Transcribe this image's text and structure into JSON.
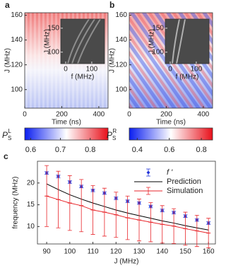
{
  "chart_data": [
    {
      "type": "heatmap",
      "panel_label": "a",
      "xlabel": "Time (ns)",
      "ylabel": "J (MHz)",
      "xlim": [
        0,
        450
      ],
      "xticks": [
        0,
        200,
        400
      ],
      "ylim": [
        85,
        162
      ],
      "yticks": [
        100,
        120,
        140,
        160
      ],
      "inset": {
        "xlabel": "f (MHz)",
        "ylabel": "J (MHz)",
        "xlim": [
          -19,
          149
        ],
        "xticks": [
          0,
          100
        ],
        "ylim": [
          76,
          169
        ],
        "yticks": [
          100,
          150
        ]
      },
      "colorbar": {
        "label": {
          "base": "P",
          "sub": "S",
          "sup": "L"
        },
        "clim": [
          0.58,
          0.86
        ],
        "ticks": [
          0.6,
          0.7,
          0.8
        ]
      }
    },
    {
      "type": "heatmap",
      "panel_label": "b",
      "xlabel": "Time (ns)",
      "ylabel": "J (MHz)",
      "xlim": [
        0,
        450
      ],
      "xticks": [
        0,
        200,
        400
      ],
      "ylim": [
        85,
        162
      ],
      "yticks": [
        100,
        120,
        140,
        160
      ],
      "inset": {
        "xlabel": "f (MHz)",
        "ylabel": "J (MHz)",
        "xlim": [
          -19,
          149
        ],
        "xticks": [
          0,
          100
        ],
        "ylim": [
          76,
          169
        ],
        "yticks": [
          100,
          150
        ]
      },
      "colorbar": {
        "label": {
          "base": "P",
          "sub": "S",
          "sup": "R"
        },
        "clim": [
          0.35,
          0.87
        ],
        "ticks": [
          0.4,
          0.6,
          0.8
        ]
      }
    },
    {
      "type": "line",
      "panel_label": "c",
      "xlabel": "J (MHz)",
      "ylabel": "frequency (MHz)",
      "x": [
        90,
        95,
        100,
        105,
        110,
        115,
        120,
        125,
        130,
        135,
        140,
        145,
        150,
        155,
        160
      ],
      "xlim": [
        86,
        163
      ],
      "xticks": [
        90,
        100,
        110,
        120,
        130,
        140,
        150,
        160
      ],
      "ylim": [
        6,
        25
      ],
      "yticks": [
        10,
        15,
        20
      ],
      "legend": "upper right",
      "series": [
        {
          "name": "f '",
          "color": "#2032d8",
          "marker": "diamond",
          "line": false,
          "values": [
            22.3,
            21.5,
            20.2,
            19.2,
            18.3,
            17.7,
            16.5,
            15.8,
            15.4,
            14.6,
            13.7,
            13.2,
            12.4,
            11.5,
            10.8
          ],
          "errors": [
            0.3,
            0.3,
            0.3,
            0.3,
            0.3,
            0.3,
            0.3,
            0.3,
            0.3,
            0.3,
            0.3,
            0.3,
            0.3,
            0.3,
            0.3
          ]
        },
        {
          "name": "Prediction",
          "color": "#000000",
          "line": true,
          "values": [
            19.8,
            18.5,
            17.3,
            16.3,
            15.4,
            14.6,
            13.8,
            13.1,
            12.5,
            11.9,
            11.3,
            10.8,
            10.2,
            9.7,
            9.2
          ]
        },
        {
          "name": "Simulation",
          "color": "#e8262b",
          "line": true,
          "values": [
            17.0,
            16.2,
            15.4,
            14.8,
            13.8,
            13.3,
            12.7,
            12.0,
            11.5,
            11.0,
            10.5,
            10.1,
            9.5,
            9.0,
            8.5
          ],
          "errors": [
            7.0,
            6.5,
            6.3,
            6.0,
            5.6,
            5.5,
            5.2,
            5.0,
            4.8,
            4.5,
            4.3,
            4.0,
            3.8,
            3.6,
            3.4
          ]
        }
      ]
    }
  ]
}
